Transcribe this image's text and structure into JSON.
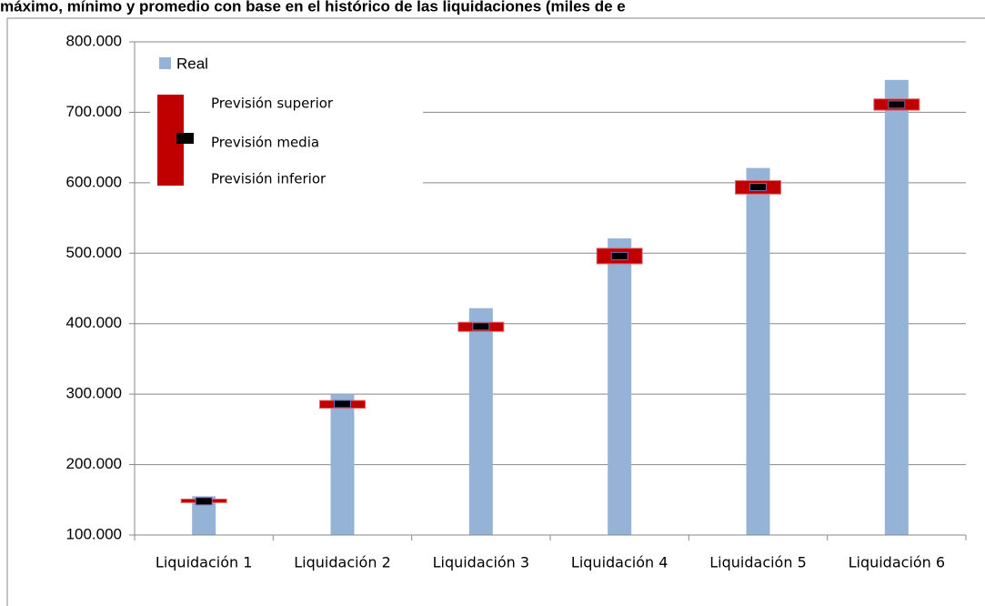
{
  "chart_data": {
    "type": "bar",
    "title": "máximo, mínimo y promedio con base en el histórico de las liquidaciones (miles de e",
    "categories": [
      "Liquidación 1",
      "Liquidación 2",
      "Liquidación 3",
      "Liquidación 4",
      "Liquidación 5",
      "Liquidación 6"
    ],
    "series": [
      {
        "name": "Real",
        "color": "#95b3d7",
        "values": [
          155000,
          300000,
          422000,
          521000,
          621000,
          746000
        ]
      },
      {
        "name": "Previsión superior",
        "color": "#c00000",
        "values": [
          151000,
          291000,
          402000,
          507000,
          603000,
          719000
        ]
      },
      {
        "name": "Previsión media",
        "color": "#000000",
        "values": [
          148000,
          286000,
          396000,
          496000,
          594000,
          711000
        ]
      },
      {
        "name": "Previsión inferior",
        "color": "#c00000",
        "values": [
          146000,
          280000,
          389000,
          485000,
          584000,
          703000
        ]
      }
    ],
    "ylim": [
      100000,
      800000
    ],
    "yticks": [
      {
        "value": 100000,
        "label": "100.000"
      },
      {
        "value": 200000,
        "label": "200.000"
      },
      {
        "value": 300000,
        "label": "300.000"
      },
      {
        "value": 400000,
        "label": "400.000"
      },
      {
        "value": 500000,
        "label": "500.000"
      },
      {
        "value": 600000,
        "label": "600.000"
      },
      {
        "value": 700000,
        "label": "700.000"
      },
      {
        "value": 800000,
        "label": "800.000"
      }
    ],
    "grid": true
  }
}
